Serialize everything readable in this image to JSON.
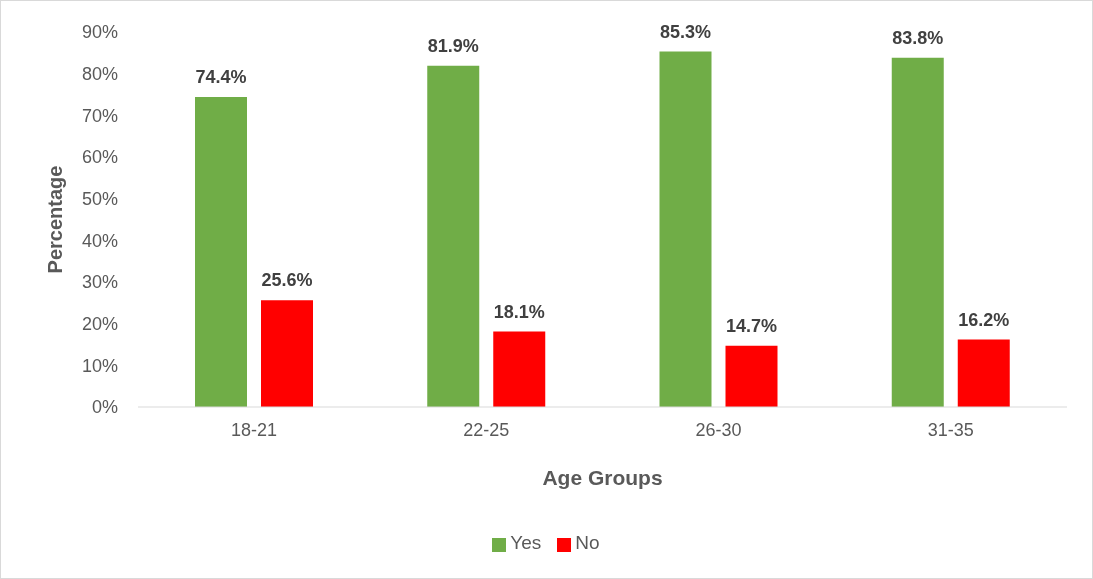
{
  "chart_data": {
    "type": "bar",
    "xlabel": "Age Groups",
    "ylabel": "Percentage",
    "categories": [
      "18-21",
      "22-25",
      "26-30",
      "31-35"
    ],
    "series": [
      {
        "name": "Yes",
        "color": "#70ad47",
        "values": [
          74.4,
          81.9,
          85.3,
          83.8
        ],
        "value_labels": [
          "74.4%",
          "81.9%",
          "85.3%",
          "83.8%"
        ]
      },
      {
        "name": "No",
        "color": "#ff0000",
        "values": [
          25.6,
          18.1,
          14.7,
          16.2
        ],
        "value_labels": [
          "25.6%",
          "18.1%",
          "14.7%",
          "16.2%"
        ]
      }
    ],
    "ylim": [
      0,
      90
    ],
    "yticks": [
      {
        "value": 0,
        "label": "0%"
      },
      {
        "value": 10,
        "label": "10%"
      },
      {
        "value": 20,
        "label": "20%"
      },
      {
        "value": 30,
        "label": "30%"
      },
      {
        "value": 40,
        "label": "40%"
      },
      {
        "value": 50,
        "label": "50%"
      },
      {
        "value": 60,
        "label": "60%"
      },
      {
        "value": 70,
        "label": "70%"
      },
      {
        "value": 80,
        "label": "80%"
      },
      {
        "value": 90,
        "label": "90%"
      }
    ],
    "legend": "bottom"
  }
}
